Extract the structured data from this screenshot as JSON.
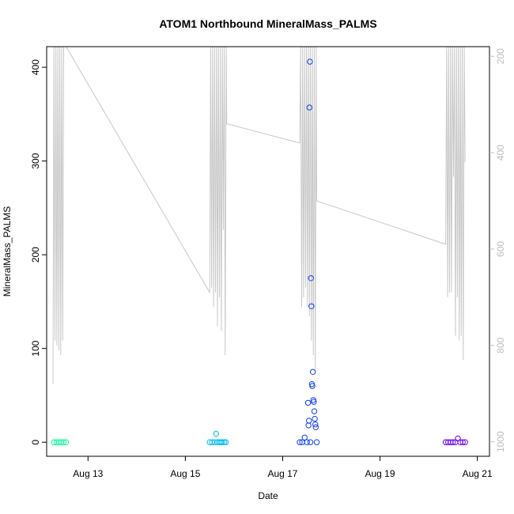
{
  "chart_data": {
    "type": "scatter",
    "title": "ATOM1 Northbound MineralMass_PALMS",
    "xlabel": "Date",
    "ylabel": "MineralMass_PALMS",
    "x_unit": "days since Aug 12 00:00",
    "xlim": [
      12.15,
      21.25
    ],
    "ylim": [
      -15,
      422
    ],
    "y_ticks": [
      0,
      100,
      200,
      300,
      400
    ],
    "x_ticks": [
      {
        "value": 13,
        "label": "Aug 13"
      },
      {
        "value": 15,
        "label": "Aug 15"
      },
      {
        "value": 17,
        "label": "Aug 17"
      },
      {
        "value": 19,
        "label": "Aug 19"
      },
      {
        "value": 21,
        "label": "Aug 21"
      }
    ],
    "secondary_axis": {
      "label": "",
      "ylim": [
        1030,
        180
      ],
      "ticks": [
        200,
        400,
        600,
        800,
        1000
      ],
      "color": "#bebebe"
    },
    "altitude_line": {
      "color": "#c8c8c8",
      "x": [
        12.28,
        12.3,
        12.32,
        12.34,
        12.36,
        12.38,
        12.4,
        12.42,
        12.44,
        12.46,
        12.48,
        12.5,
        12.52,
        12.53,
        12.55,
        15.5,
        15.52,
        15.54,
        15.56,
        15.58,
        15.6,
        15.62,
        15.64,
        15.66,
        15.68,
        15.7,
        15.72,
        15.74,
        15.76,
        15.78,
        15.8,
        15.82,
        15.84,
        15.85,
        17.35,
        17.37,
        17.39,
        17.41,
        17.43,
        17.45,
        17.47,
        17.49,
        17.51,
        17.53,
        17.55,
        17.57,
        17.59,
        17.61,
        17.63,
        17.65,
        17.67,
        17.69,
        17.7,
        20.35,
        20.37,
        20.39,
        20.41,
        20.43,
        20.45,
        20.47,
        20.49,
        20.51,
        20.53,
        20.55,
        20.57,
        20.59,
        20.61,
        20.63,
        20.65,
        20.67,
        20.69,
        20.71,
        20.73,
        20.75
      ],
      "y": [
        880,
        180,
        790,
        180,
        800,
        180,
        810,
        180,
        820,
        180,
        790,
        180,
        180,
        180,
        180,
        690,
        180,
        680,
        180,
        720,
        180,
        690,
        180,
        760,
        180,
        700,
        180,
        770,
        180,
        560,
        180,
        820,
        180,
        340,
        380,
        180,
        720,
        180,
        700,
        180,
        680,
        180,
        720,
        180,
        740,
        180,
        790,
        180,
        820,
        180,
        860,
        180,
        500,
        590,
        180,
        700,
        180,
        690,
        180,
        690,
        180,
        450,
        180,
        780,
        180,
        700,
        180,
        790,
        180,
        780,
        180,
        830,
        180,
        420
      ]
    },
    "series": [
      {
        "color": "#00ff99",
        "x": [
          12.3,
          12.35,
          12.4,
          12.45,
          12.5,
          12.55
        ],
        "y": [
          0,
          0,
          0,
          0,
          0,
          0
        ]
      },
      {
        "color": "#00bbf0",
        "x": [
          15.5,
          15.55,
          15.6,
          15.63,
          15.66,
          15.7,
          15.73,
          15.76,
          15.8,
          15.83
        ],
        "y": [
          0,
          0,
          0,
          9,
          0,
          0,
          0,
          0,
          0,
          0
        ]
      },
      {
        "color": "#1040f0",
        "x": [
          17.35,
          17.4,
          17.45,
          17.5,
          17.52,
          17.53,
          17.54,
          17.55,
          17.56,
          17.57,
          17.58,
          17.59,
          17.6,
          17.61,
          17.62,
          17.63,
          17.64,
          17.65,
          17.66,
          17.67,
          17.68,
          17.7
        ],
        "y": [
          0,
          0,
          5,
          0,
          42,
          18,
          23,
          357,
          406,
          0,
          175,
          145,
          62,
          60,
          75,
          45,
          43,
          33,
          25,
          19,
          16,
          0
        ]
      },
      {
        "color": "#6a00f0",
        "x": [
          20.35,
          20.4,
          20.45,
          20.5,
          20.55,
          20.6,
          20.65,
          20.7,
          20.75
        ],
        "y": [
          0,
          0,
          0,
          0,
          0,
          4,
          0,
          0,
          0
        ]
      }
    ]
  }
}
